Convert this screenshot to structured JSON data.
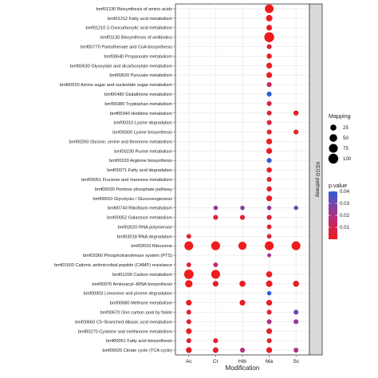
{
  "chart_data": {
    "type": "scatter",
    "subtype": "dot-plot",
    "xlabel": "Modification",
    "ylabel": "",
    "facet_label": "KEGG pathway",
    "x_categories": [
      "Ac",
      "Cr",
      "Hib",
      "Ma",
      "Sc"
    ],
    "y_categories": [
      "bmf01230 Biosynthesis of amino acids",
      "bmf01212 Fatty acid metabolism",
      "bmf01210 2-Oxocarboxylic acid metabolism",
      "bmf01130 Biosynthesis of antibiotics",
      "bmf00770 Pantothenate and CoA biosynthesis",
      "bmf00640 Propanoate metabolism",
      "bmf00630 Glyoxylate and dicarboxylate metabolism",
      "bmf00620 Pyruvate metabolism",
      "bmf00520 Amino sugar and nucleotide sugar metabolism",
      "bmf00480 Glutathione metabolism",
      "bmf00380 Tryptophan metabolism",
      "bmf00340 Histidine metabolism",
      "bmf00310 Lysine degradation",
      "bmf00300 Lysine biosynthesis",
      "bmf00260 Glycine, serine and threonine metabolism",
      "bmf00230 Purine metabolism",
      "bmf00220 Arginine biosynthesis",
      "bmf00071 Fatty acid degradation",
      "bmf00051 Fructose and mannose metabolism",
      "bmf00030 Pentose phosphate pathway",
      "bmf00010 Glycolysis / Gluconeogenesis",
      "bmf00740 Riboflavin metabolism",
      "bmf00052 Galactose metabolism",
      "bmf03020 RNA polymerase",
      "bmf03018 RNA degradation",
      "bmf03010 Ribosome",
      "bmf02060 Phosphotransferase system (PTS)",
      "bmf01503 Cationic antimicrobial peptide (CAMP) resistance",
      "bmf01200 Carbon metabolism",
      "bmf00970 Aminoacyl−tRNA biosynthesis",
      "bmf00903 Limonene and pinene degradation",
      "bmf00680 Methane metabolism",
      "bmf00670 One carbon pool by folate",
      "bmf00660 C5−Branched dibasic acid metabolism",
      "bmf00270 Cysteine and methionine metabolism",
      "bmf00061 Fatty acid biosynthesis",
      "bmf00020 Citrate cycle (TCA cycle)"
    ],
    "points": [
      {
        "x": "Ma",
        "y": "bmf01230 Biosynthesis of amino acids",
        "mapping": 70,
        "pvalue": 0.0
      },
      {
        "x": "Ma",
        "y": "bmf01212 Fatty acid metabolism",
        "mapping": 30,
        "pvalue": 0.001
      },
      {
        "x": "Ma",
        "y": "bmf01210 2-Oxocarboxylic acid metabolism",
        "mapping": 20,
        "pvalue": 0.001
      },
      {
        "x": "Ma",
        "y": "bmf01130 Biosynthesis of antibiotics",
        "mapping": 100,
        "pvalue": 0.0
      },
      {
        "x": "Ma",
        "y": "bmf00770 Pantothenate and CoA biosynthesis",
        "mapping": 12,
        "pvalue": 0.005
      },
      {
        "x": "Ma",
        "y": "bmf00640 Propanoate metabolism",
        "mapping": 15,
        "pvalue": 0.002
      },
      {
        "x": "Ma",
        "y": "bmf00630 Glyoxylate and dicarboxylate metabolism",
        "mapping": 22,
        "pvalue": 0.001
      },
      {
        "x": "Ma",
        "y": "bmf00620 Pyruvate metabolism",
        "mapping": 22,
        "pvalue": 0.001
      },
      {
        "x": "Ma",
        "y": "bmf00520 Amino sugar and nucleotide sugar metabolism",
        "mapping": 12,
        "pvalue": 0.012
      },
      {
        "x": "Ma",
        "y": "bmf00480 Glutathione metabolism",
        "mapping": 12,
        "pvalue": 0.04
      },
      {
        "x": "Ma",
        "y": "bmf00380 Tryptophan metabolism",
        "mapping": 12,
        "pvalue": 0.008
      },
      {
        "x": "Ma",
        "y": "bmf00340 Histidine metabolism",
        "mapping": 12,
        "pvalue": 0.006
      },
      {
        "x": "Sc",
        "y": "bmf00340 Histidine metabolism",
        "mapping": 15,
        "pvalue": 0.002
      },
      {
        "x": "Ma",
        "y": "bmf00310 Lysine degradation",
        "mapping": 12,
        "pvalue": 0.006
      },
      {
        "x": "Ma",
        "y": "bmf00300 Lysine biosynthesis",
        "mapping": 12,
        "pvalue": 0.004
      },
      {
        "x": "Sc",
        "y": "bmf00300 Lysine biosynthesis",
        "mapping": 12,
        "pvalue": 0.003
      },
      {
        "x": "Ma",
        "y": "bmf00260 Glycine, serine and threonine metabolism",
        "mapping": 22,
        "pvalue": 0.001
      },
      {
        "x": "Ma",
        "y": "bmf00230 Purine metabolism",
        "mapping": 22,
        "pvalue": 0.002
      },
      {
        "x": "Ma",
        "y": "bmf00220 Arginine biosynthesis",
        "mapping": 12,
        "pvalue": 0.038
      },
      {
        "x": "Ma",
        "y": "bmf00071 Fatty acid degradation",
        "mapping": 15,
        "pvalue": 0.002
      },
      {
        "x": "Ma",
        "y": "bmf00051 Fructose and mannose metabolism",
        "mapping": 12,
        "pvalue": 0.004
      },
      {
        "x": "Ma",
        "y": "bmf00030 Pentose phosphate pathway",
        "mapping": 15,
        "pvalue": 0.003
      },
      {
        "x": "Ma",
        "y": "bmf00010 Glycolysis / Gluconeogenesis",
        "mapping": 22,
        "pvalue": 0.002
      },
      {
        "x": "Cr",
        "y": "bmf00740 Riboflavin metabolism",
        "mapping": 8,
        "pvalue": 0.024
      },
      {
        "x": "Hib",
        "y": "bmf00740 Riboflavin metabolism",
        "mapping": 8,
        "pvalue": 0.028
      },
      {
        "x": "Ma",
        "y": "bmf00740 Riboflavin metabolism",
        "mapping": 8,
        "pvalue": 0.025
      },
      {
        "x": "Sc",
        "y": "bmf00740 Riboflavin metabolism",
        "mapping": 8,
        "pvalue": 0.03
      },
      {
        "x": "Cr",
        "y": "bmf00052 Galactose metabolism",
        "mapping": 12,
        "pvalue": 0.006
      },
      {
        "x": "Hib",
        "y": "bmf00052 Galactose metabolism",
        "mapping": 12,
        "pvalue": 0.004
      },
      {
        "x": "Ma",
        "y": "bmf00052 Galactose metabolism",
        "mapping": 12,
        "pvalue": 0.006
      },
      {
        "x": "Ma",
        "y": "bmf03020 RNA polymerase",
        "mapping": 10,
        "pvalue": 0.004
      },
      {
        "x": "Ma",
        "y": "bmf03018 RNA degradation",
        "mapping": 10,
        "pvalue": 0.006
      },
      {
        "x": "Ac",
        "y": "bmf03018 RNA degradation",
        "mapping": 10,
        "pvalue": 0.004
      },
      {
        "x": "Ac",
        "y": "bmf03010 Ribosome",
        "mapping": 75,
        "pvalue": 0.0
      },
      {
        "x": "Cr",
        "y": "bmf03010 Ribosome",
        "mapping": 75,
        "pvalue": 0.0
      },
      {
        "x": "Hib",
        "y": "bmf03010 Ribosome",
        "mapping": 60,
        "pvalue": 0.0
      },
      {
        "x": "Ma",
        "y": "bmf03010 Ribosome",
        "mapping": 75,
        "pvalue": 0.0
      },
      {
        "x": "Sc",
        "y": "bmf03010 Ribosome",
        "mapping": 75,
        "pvalue": 0.0
      },
      {
        "x": "Ma",
        "y": "bmf02060 Phosphotransferase system (PTS)",
        "mapping": 5,
        "pvalue": 0.022
      },
      {
        "x": "Ac",
        "y": "bmf01503 Cationic antimicrobial peptide (CAMP) resistance",
        "mapping": 10,
        "pvalue": 0.004
      },
      {
        "x": "Cr",
        "y": "bmf01503 Cationic antimicrobial peptide (CAMP) resistance",
        "mapping": 10,
        "pvalue": 0.015
      },
      {
        "x": "Ac",
        "y": "bmf01200 Carbon metabolism",
        "mapping": 90,
        "pvalue": 0.0
      },
      {
        "x": "Cr",
        "y": "bmf01200 Carbon metabolism",
        "mapping": 75,
        "pvalue": 0.0
      },
      {
        "x": "Ma",
        "y": "bmf01200 Carbon metabolism",
        "mapping": 25,
        "pvalue": 0.002
      },
      {
        "x": "Ac",
        "y": "bmf00970 Aminoacyl−tRNA biosynthesis",
        "mapping": 45,
        "pvalue": 0.0
      },
      {
        "x": "Cr",
        "y": "bmf00970 Aminoacyl−tRNA biosynthesis",
        "mapping": 20,
        "pvalue": 0.002
      },
      {
        "x": "Hib",
        "y": "bmf00970 Aminoacyl−tRNA biosynthesis",
        "mapping": 25,
        "pvalue": 0.001
      },
      {
        "x": "Ma",
        "y": "bmf00970 Aminoacyl−tRNA biosynthesis",
        "mapping": 30,
        "pvalue": 0.001
      },
      {
        "x": "Sc",
        "y": "bmf00970 Aminoacyl−tRNA biosynthesis",
        "mapping": 25,
        "pvalue": 0.001
      },
      {
        "x": "Ma",
        "y": "bmf00903 Limonene and pinene degradation",
        "mapping": 8,
        "pvalue": 0.04
      },
      {
        "x": "Ac",
        "y": "bmf00680 Methane metabolism",
        "mapping": 20,
        "pvalue": 0.001
      },
      {
        "x": "Hib",
        "y": "bmf00680 Methane metabolism",
        "mapping": 20,
        "pvalue": 0.002
      },
      {
        "x": "Ma",
        "y": "bmf00680 Methane metabolism",
        "mapping": 22,
        "pvalue": 0.001
      },
      {
        "x": "Ac",
        "y": "bmf00670 One carbon pool by folate",
        "mapping": 12,
        "pvalue": 0.006
      },
      {
        "x": "Ma",
        "y": "bmf00670 One carbon pool by folate",
        "mapping": 12,
        "pvalue": 0.004
      },
      {
        "x": "Sc",
        "y": "bmf00670 One carbon pool by folate",
        "mapping": 12,
        "pvalue": 0.03
      },
      {
        "x": "Ac",
        "y": "bmf00660 C5−Branched dibasic acid metabolism",
        "mapping": 12,
        "pvalue": 0.004
      },
      {
        "x": "Ma",
        "y": "bmf00660 C5−Branched dibasic acid metabolism",
        "mapping": 12,
        "pvalue": 0.02
      },
      {
        "x": "Sc",
        "y": "bmf00660 C5−Branched dibasic acid metabolism",
        "mapping": 12,
        "pvalue": 0.025
      },
      {
        "x": "Ac",
        "y": "bmf00270 Cysteine and methionine metabolism",
        "mapping": 20,
        "pvalue": 0.002
      },
      {
        "x": "Ma",
        "y": "bmf00270 Cysteine and methionine metabolism",
        "mapping": 20,
        "pvalue": 0.003
      },
      {
        "x": "Ac",
        "y": "bmf00061 Fatty acid biosynthesis",
        "mapping": 12,
        "pvalue": 0.005
      },
      {
        "x": "Cr",
        "y": "bmf00061 Fatty acid biosynthesis",
        "mapping": 12,
        "pvalue": 0.004
      },
      {
        "x": "Ma",
        "y": "bmf00061 Fatty acid biosynthesis",
        "mapping": 12,
        "pvalue": 0.003
      },
      {
        "x": "Ac",
        "y": "bmf00020 Citrate cycle (TCA cycle)",
        "mapping": 22,
        "pvalue": 0.002
      },
      {
        "x": "Cr",
        "y": "bmf00020 Citrate cycle (TCA cycle)",
        "mapping": 20,
        "pvalue": 0.004
      },
      {
        "x": "Hib",
        "y": "bmf00020 Citrate cycle (TCA cycle)",
        "mapping": 12,
        "pvalue": 0.018
      },
      {
        "x": "Ma",
        "y": "bmf00020 Citrate cycle (TCA cycle)",
        "mapping": 22,
        "pvalue": 0.002
      },
      {
        "x": "Sc",
        "y": "bmf00020 Citrate cycle (TCA cycle)",
        "mapping": 12,
        "pvalue": 0.02
      }
    ],
    "legend_size": {
      "title": "Mapping",
      "values": [
        25,
        50,
        75,
        100
      ],
      "labels": [
        "25",
        "50",
        "75",
        "100"
      ]
    },
    "legend_color": {
      "title": "p.value",
      "min": 0.0,
      "max": 0.04,
      "ticks": [
        0.04,
        0.03,
        0.02,
        0.01
      ],
      "tick_labels": [
        "0.04",
        "0.03",
        "0.02",
        "0.01"
      ],
      "low_color": "#ee1c1c",
      "mid_color": "#b22f86",
      "high_color": "#2b5fd7"
    },
    "grid": true,
    "legend_position": "right"
  }
}
